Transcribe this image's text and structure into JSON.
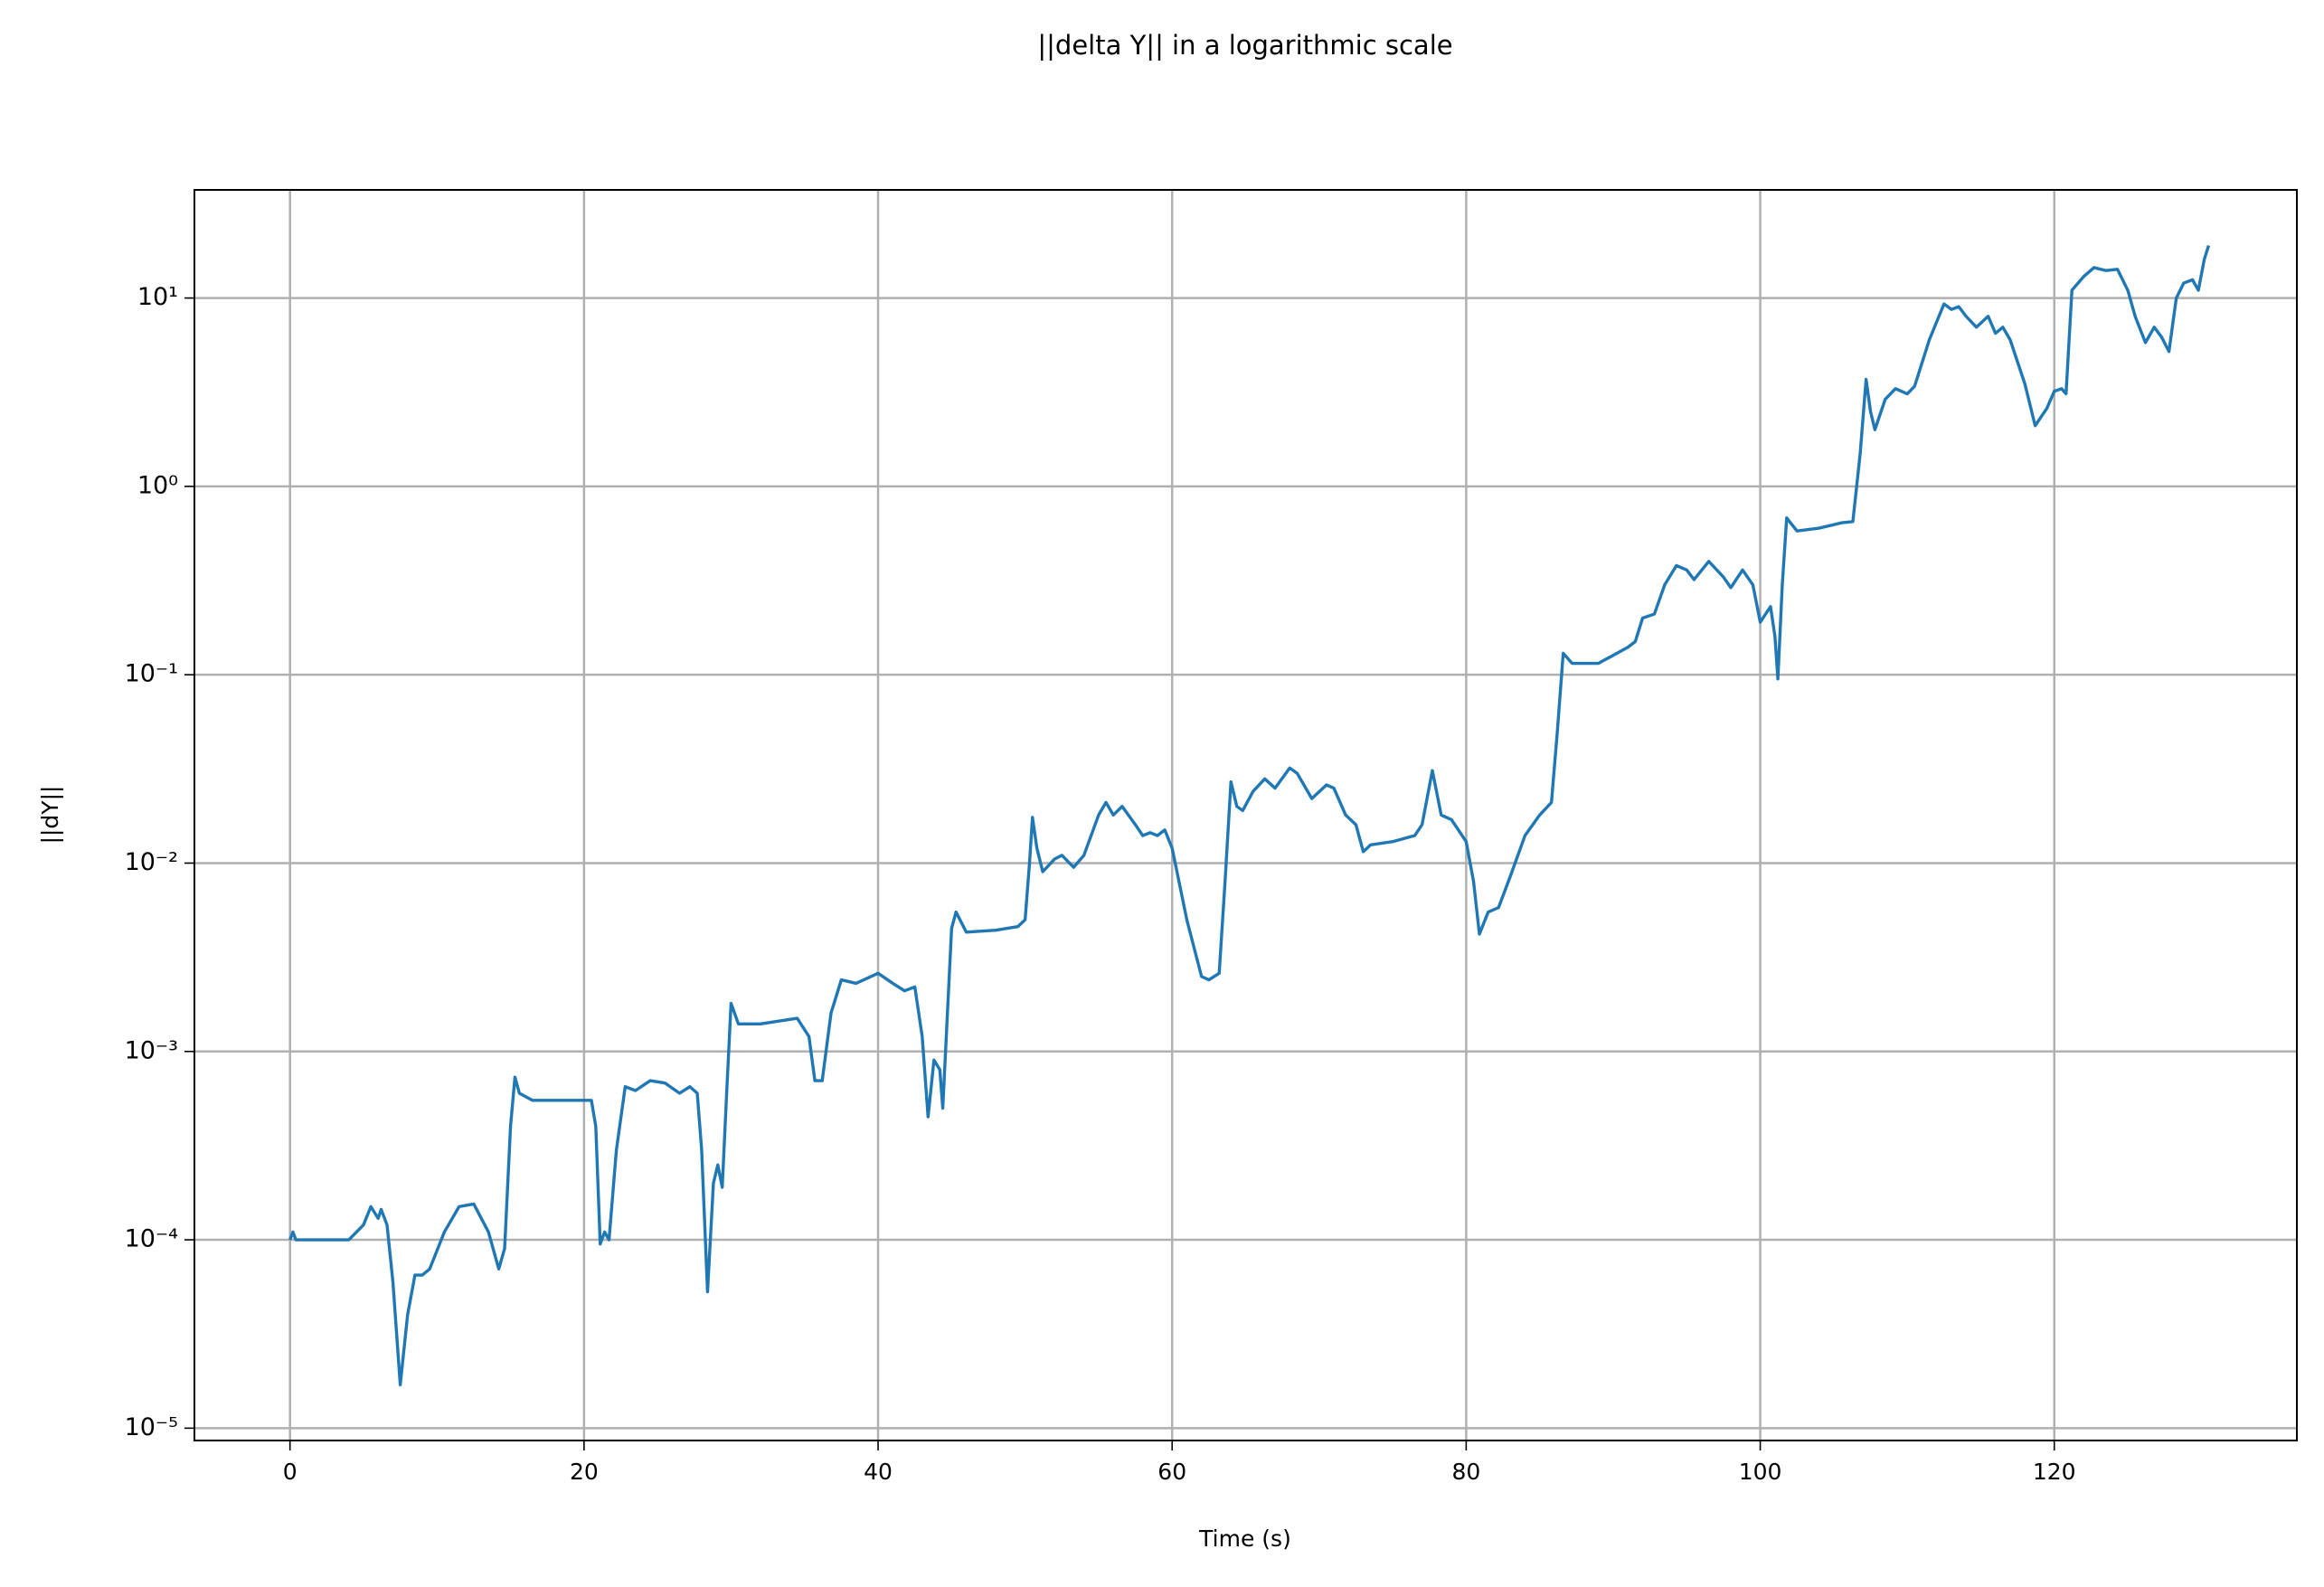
{
  "chart_data": {
    "type": "line",
    "title": "||delta Y|| in a logarithmic scale",
    "x_label": "Time (s)",
    "y_label": "||dY||",
    "log_y": true,
    "grid": true,
    "color": "#1f77b4",
    "xlim": [
      -6.5,
      136.5
    ],
    "xticks": [
      0,
      20,
      40,
      60,
      80,
      100,
      120
    ],
    "ylim": [
      8.6e-06,
      37.5
    ],
    "yticks": [
      {
        "value": 1e-05,
        "label": "10⁻⁵"
      },
      {
        "value": 0.0001,
        "label": "10⁻⁴"
      },
      {
        "value": 0.001,
        "label": "10⁻³"
      },
      {
        "value": 0.01,
        "label": "10⁻²"
      },
      {
        "value": 0.1,
        "label": "10⁻¹"
      },
      {
        "value": 1,
        "label": "10⁰"
      },
      {
        "value": 10,
        "label": "10¹"
      }
    ],
    "x": [
      0,
      0.2,
      0.4,
      3,
      4,
      5,
      5.5,
      6,
      6.2,
      6.6,
      7,
      7.5,
      8,
      8.5,
      9,
      9.5,
      10.5,
      11.5,
      12.5,
      13.5,
      14.2,
      14.6,
      15,
      15.3,
      15.6,
      16.5,
      20.5,
      20.8,
      21.1,
      21.4,
      21.7,
      22.2,
      22.8,
      23.5,
      24.5,
      25.5,
      26.5,
      27.2,
      27.7,
      28,
      28.4,
      28.8,
      29.1,
      29.4,
      29.7,
      30,
      30.5,
      32,
      34.5,
      35.3,
      35.7,
      36.2,
      36.8,
      37.5,
      38.5,
      40,
      41,
      41.8,
      42.5,
      43,
      43.4,
      43.8,
      44.2,
      44.4,
      44.7,
      45,
      45.3,
      46,
      48,
      49.5,
      50,
      50.3,
      50.5,
      50.8,
      51.2,
      52,
      52.5,
      53.3,
      54,
      55,
      55.5,
      56,
      56.6,
      57.5,
      58,
      58.5,
      59,
      59.5,
      60,
      61,
      62,
      62.5,
      63.2,
      63.6,
      64,
      64.4,
      64.8,
      65.5,
      66.3,
      67,
      68,
      68.5,
      69.5,
      70.5,
      71,
      71.8,
      72.5,
      73,
      73.5,
      75,
      76.5,
      77,
      77.7,
      78.3,
      79,
      80,
      80.5,
      80.9,
      81.5,
      82.2,
      83,
      84,
      85,
      85.8,
      86.2,
      86.6,
      87.2,
      89,
      91,
      91.5,
      92,
      92.8,
      93.5,
      94.3,
      95,
      95.5,
      96.5,
      97.5,
      98,
      98.8,
      99.5,
      100,
      100.7,
      101,
      101.2,
      101.5,
      101.8,
      102.5,
      104,
      105.5,
      106.3,
      106.8,
      107.2,
      107.5,
      107.8,
      108.5,
      109.2,
      110,
      110.5,
      111.5,
      112.5,
      113,
      113.5,
      114,
      114.7,
      115.5,
      116,
      116.5,
      117,
      118,
      118.7,
      119.5,
      120,
      120.5,
      120.8,
      121.2,
      122,
      122.7,
      123.5,
      124.3,
      125,
      125.5,
      126.2,
      126.8,
      127.3,
      127.8,
      128.3,
      128.8,
      129.4,
      129.8,
      130.2,
      130.5
    ],
    "values": [
      0.0001,
      0.00011,
      0.0001,
      0.0001,
      0.0001,
      0.00012,
      0.00015,
      0.00013,
      0.000145,
      0.00012,
      6e-05,
      1.7e-05,
      4e-05,
      6.5e-05,
      6.5e-05,
      7e-05,
      0.00011,
      0.00015,
      0.000155,
      0.00011,
      7e-05,
      9e-05,
      0.0004,
      0.00073,
      0.0006,
      0.00055,
      0.00055,
      0.0004,
      9.5e-05,
      0.00011,
      0.0001,
      0.0003,
      0.00065,
      0.00062,
      0.0007,
      0.00068,
      0.0006,
      0.00065,
      0.0006,
      0.0003,
      5.3e-05,
      0.0002,
      0.00025,
      0.00019,
      0.0006,
      0.0018,
      0.0014,
      0.0014,
      0.0015,
      0.0012,
      0.0007,
      0.0007,
      0.0016,
      0.0024,
      0.0023,
      0.0026,
      0.0023,
      0.0021,
      0.0022,
      0.0012,
      0.00045,
      0.0009,
      0.0008,
      0.0005,
      0.0015,
      0.0045,
      0.0055,
      0.0043,
      0.0044,
      0.0046,
      0.005,
      0.01,
      0.0175,
      0.012,
      0.009,
      0.0105,
      0.011,
      0.0095,
      0.011,
      0.018,
      0.021,
      0.018,
      0.02,
      0.016,
      0.014,
      0.0145,
      0.014,
      0.015,
      0.012,
      0.005,
      0.0025,
      0.0024,
      0.0026,
      0.008,
      0.027,
      0.02,
      0.019,
      0.024,
      0.028,
      0.025,
      0.032,
      0.03,
      0.022,
      0.026,
      0.025,
      0.018,
      0.016,
      0.0115,
      0.0125,
      0.013,
      0.014,
      0.016,
      0.031,
      0.018,
      0.017,
      0.013,
      0.008,
      0.0042,
      0.0055,
      0.0058,
      0.0085,
      0.014,
      0.018,
      0.021,
      0.05,
      0.13,
      0.115,
      0.115,
      0.14,
      0.15,
      0.2,
      0.21,
      0.3,
      0.38,
      0.36,
      0.32,
      0.4,
      0.33,
      0.29,
      0.36,
      0.3,
      0.19,
      0.23,
      0.16,
      0.095,
      0.3,
      0.68,
      0.58,
      0.6,
      0.64,
      0.65,
      1.5,
      3.7,
      2.5,
      2,
      2.9,
      3.3,
      3.1,
      3.4,
      6,
      9.3,
      8.7,
      9,
      8,
      7,
      8,
      6.5,
      7,
      6,
      3.5,
      2.1,
      2.6,
      3.2,
      3.3,
      3.1,
      11,
      13,
      14.5,
      14,
      14.2,
      11,
      8,
      5.8,
      7,
      6.2,
      5.2,
      10,
      12,
      12.5,
      11,
      16,
      19
    ]
  }
}
